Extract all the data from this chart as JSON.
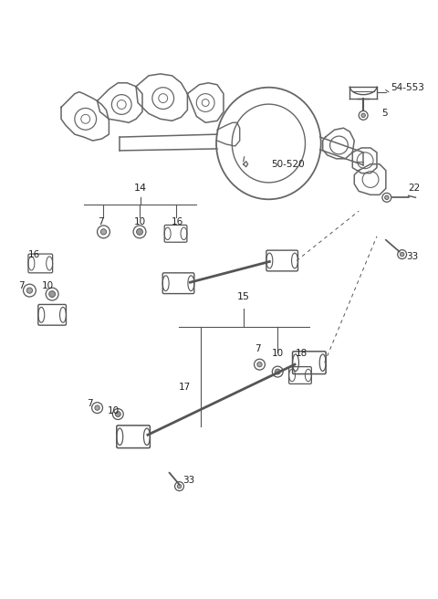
{
  "bg_color": "#ffffff",
  "line_color": "#555555",
  "text_color": "#222222",
  "fig_width": 4.8,
  "fig_height": 6.56,
  "dpi": 100
}
